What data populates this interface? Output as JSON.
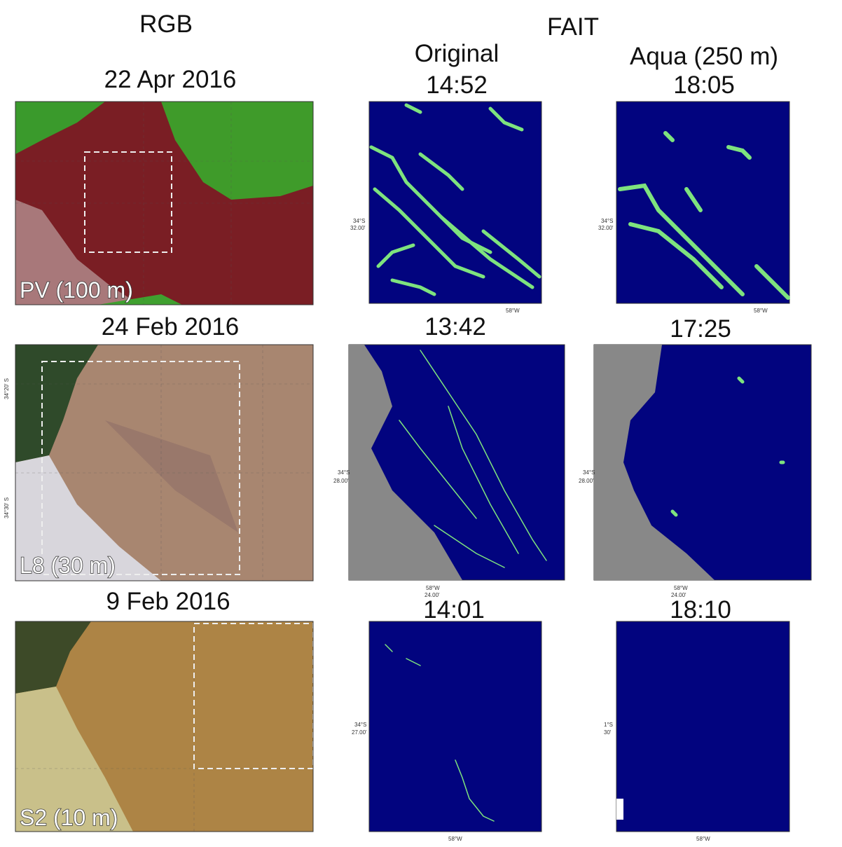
{
  "header": {
    "rgb": "RGB",
    "fait": "FAIT",
    "original": "Original",
    "aqua": "Aqua (250 m)"
  },
  "rows": [
    {
      "date": "22 Apr 2016",
      "sensor": "PV (100 m)",
      "original_time": "14:52",
      "aqua_time": "18:05",
      "original_lat": [
        "34°S",
        "32.00'"
      ],
      "original_lon": "58°W",
      "aqua_lat": [
        "34°S",
        "32.00'"
      ],
      "aqua_lon": "58°W"
    },
    {
      "date": "24 Feb 2016",
      "sensor": "L8 (30 m)",
      "original_time": "13:42",
      "aqua_time": "17:25",
      "rgb_lat": [
        "34°20' S",
        "34°30' S"
      ],
      "original_lat": [
        "34°S",
        "28.00'"
      ],
      "original_lon": [
        "58°W",
        "24.00'"
      ],
      "aqua_lat": [
        "34°S",
        "28.00'"
      ],
      "aqua_lon": [
        "58°W",
        "24.00'"
      ]
    },
    {
      "date": "9 Feb 2016",
      "sensor": "S2 (10 m)",
      "original_time": "14:01",
      "aqua_time": "18:10",
      "original_lat": [
        "34°S",
        "27.00'"
      ],
      "original_lon": "58°W",
      "aqua_lat": [
        "1°S",
        "30'"
      ],
      "aqua_lon": "58°W"
    }
  ]
}
